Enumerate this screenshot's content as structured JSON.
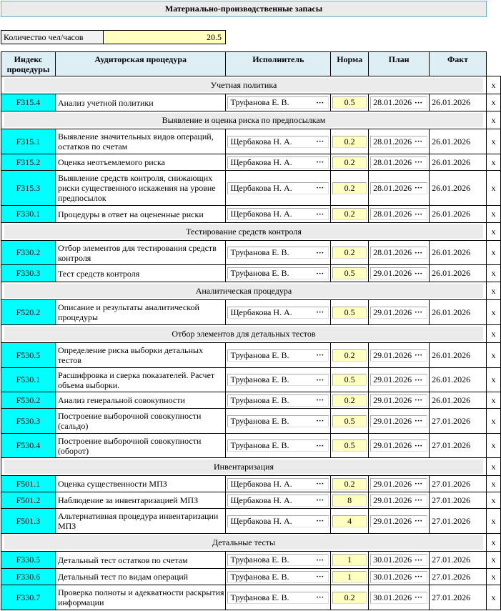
{
  "title": "Материально-производственные запасы",
  "hours": {
    "label": "Количество чел/часов",
    "value": "20.5"
  },
  "headers": {
    "index": "Индекс процедуры",
    "procedure": "Аудиторская процедура",
    "executor": "Исполнитель",
    "norm": "Норма",
    "plan": "План",
    "fact": "Факт"
  },
  "delete_label": "x",
  "colors": {
    "index_bg": "#00ffff",
    "norm_bg": "#ffffbf",
    "header_bg": "#ddeef5"
  },
  "sections": [
    {
      "name": "Учетная политика",
      "rows": [
        {
          "index": "F315.4",
          "procedure": "Анализ учетной политики",
          "executor": "Труфанова  Е. В.",
          "norm": "0.5",
          "plan": "28.01.2026",
          "fact": "26.01.2026",
          "h": 24
        }
      ]
    },
    {
      "name": "Выявление и оценка риска по предпосылкам",
      "rows": [
        {
          "index": "F315.1",
          "procedure": "Выявление значительных видов операций, остатков по счетам",
          "executor": "Щербакова Н. А.",
          "norm": "0.2",
          "plan": "28.01.2026",
          "fact": "26.01.2026",
          "h": 35
        },
        {
          "index": "F315.2",
          "procedure": "Оценка неотъемлемого риска",
          "executor": "Щербакова Н. А.",
          "norm": "0.2",
          "plan": "28.01.2026",
          "fact": "26.01.2026",
          "h": 23
        },
        {
          "index": "F315.3",
          "procedure": "Выявление средств контроля, снижающих риски существенного искажения на уровне предпосылок",
          "executor": "Щербакова Н. А.",
          "norm": "0.2",
          "plan": "28.01.2026",
          "fact": "26.01.2026",
          "h": 49
        },
        {
          "index": "F330.1",
          "procedure": "Процедуры в ответ на оцененные риски",
          "executor": "Щербакова Н. А.",
          "norm": "0.2",
          "plan": "28.01.2026",
          "fact": "26.01.2026",
          "h": 24
        }
      ]
    },
    {
      "name": "Тестирование средств контроля",
      "rows": [
        {
          "index": "F330.2",
          "procedure": "Отбор элементов для тестирования средств контроля",
          "executor": "Труфанова  Е. В.",
          "norm": "0.2",
          "plan": "28.01.2026",
          "fact": "26.01.2026",
          "h": 34
        },
        {
          "index": "F330.3",
          "procedure": "Тест средств контроля",
          "executor": "Труфанова  Е. В.",
          "norm": "0.5",
          "plan": "29.01.2026",
          "fact": "26.01.2026",
          "h": 24
        }
      ]
    },
    {
      "name": "Аналитическая процедура",
      "rows": [
        {
          "index": "F520.2",
          "procedure": "Описание и результаты аналитической процедуры",
          "executor": "Щербакова Н. А.",
          "norm": "0.5",
          "plan": "29.01.2026",
          "fact": "26.01.2026",
          "h": 35
        }
      ]
    },
    {
      "name": "Отбор элементов для детальных тестов",
      "rows": [
        {
          "index": "F530.5",
          "procedure": "Определение риска выборки детальных тестов",
          "executor": "Труфанова  Е. В.",
          "norm": "0.2",
          "plan": "29.01.2026",
          "fact": "26.01.2026",
          "h": 35
        },
        {
          "index": "F530.1",
          "procedure": "Расшифровка и сверка показателей. Расчет объема выборки.",
          "executor": "Труфанова  Е. В.",
          "norm": "0.5",
          "plan": "29.01.2026",
          "fact": "26.01.2026",
          "h": 34
        },
        {
          "index": "F530.2",
          "procedure": "Анализ генеральной совокупности",
          "executor": "Труфанова  Е. В.",
          "norm": "0.2",
          "plan": "29.01.2026",
          "fact": "26.01.2026",
          "h": 23
        },
        {
          "index": "F530.3",
          "procedure": "Построение выборочной совокупности (сальдо)",
          "executor": "Труфанова  Е. В.",
          "norm": "0.5",
          "plan": "29.01.2026",
          "fact": "27.01.2026",
          "h": 35
        },
        {
          "index": "F530.4",
          "procedure": "Построение выборочной совокупности (оборот)",
          "executor": "Труфанова  Е. В.",
          "norm": "0.5",
          "plan": "29.01.2026",
          "fact": "27.01.2026",
          "h": 34
        }
      ]
    },
    {
      "name": "Инвентаризация",
      "rows": [
        {
          "index": "F501.1",
          "procedure": "Оценка существенности МПЗ",
          "executor": "Щербакова Н. А.",
          "norm": "0.2",
          "plan": "29.01.2026",
          "fact": "27.01.2026",
          "h": 23
        },
        {
          "index": "F501.2",
          "procedure": "Наблюдение за инвентаризацией МПЗ",
          "executor": "Щербакова Н. А.",
          "norm": "8",
          "plan": "29.01.2026",
          "fact": "27.01.2026",
          "h": 23
        },
        {
          "index": "F501.3",
          "procedure": "Альтернативная процедура инвентаризации МПЗ",
          "executor": "Щербакова Н. А.",
          "norm": "4",
          "plan": "29.01.2026",
          "fact": "27.01.2026",
          "h": 35
        }
      ]
    },
    {
      "name": "Детальные тесты",
      "rows": [
        {
          "index": "F330.5",
          "procedure": "Детальный тест остатков по счетам",
          "executor": "Труфанова  Е. В.",
          "norm": "1",
          "plan": "30.01.2026",
          "fact": "27.01.2026",
          "h": 24
        },
        {
          "index": "F330.6",
          "procedure": "Детальный тест по видам операций",
          "executor": "Труфанова  Е. В.",
          "norm": "1",
          "plan": "30.01.2026",
          "fact": "27.01.2026",
          "h": 23
        },
        {
          "index": "F330.7",
          "procedure": "Проверка полноты и адекватности раскрытия информации",
          "executor": "Труфанова  Е. В.",
          "norm": "0.2",
          "plan": "30.01.2026",
          "fact": "27.01.2026",
          "h": 35
        }
      ]
    }
  ]
}
